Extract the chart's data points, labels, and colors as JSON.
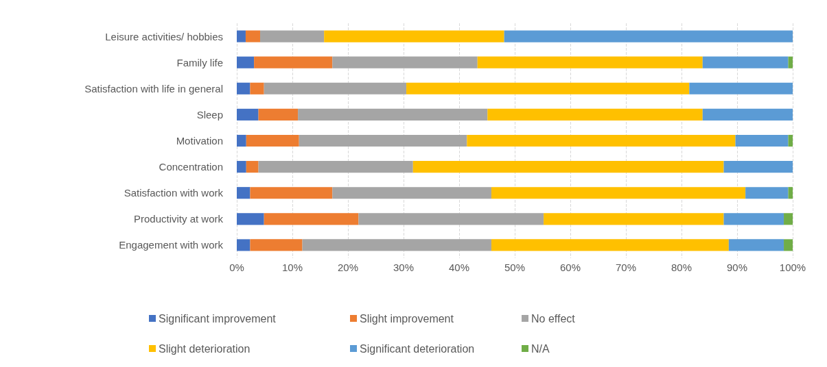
{
  "chart_data": {
    "type": "bar",
    "orientation": "horizontal",
    "stacked": true,
    "categories": [
      "Leisure activities/ hobbies",
      "Family life",
      "Satisfaction with life in general",
      "Sleep",
      "Motivation",
      "Concentration",
      "Satisfaction with work",
      "Productivity at work",
      "Engagement with work"
    ],
    "series": [
      {
        "name": "Significant improvement",
        "color": "#4472c4",
        "values": [
          1.6,
          3.1,
          2.4,
          3.9,
          1.7,
          1.7,
          2.4,
          4.9,
          2.4
        ]
      },
      {
        "name": "Slight improvement",
        "color": "#ed7d31",
        "values": [
          2.6,
          14.1,
          2.5,
          7.1,
          9.5,
          2.2,
          14.8,
          17.0,
          9.4
        ]
      },
      {
        "name": "No effect",
        "color": "#a5a5a5",
        "values": [
          11.5,
          26.1,
          25.6,
          34.1,
          30.2,
          27.8,
          28.6,
          33.3,
          34.0
        ]
      },
      {
        "name": "Slight deterioration",
        "color": "#ffc000",
        "values": [
          32.4,
          40.5,
          50.9,
          38.7,
          48.3,
          55.9,
          45.7,
          32.4,
          42.7
        ]
      },
      {
        "name": "Significant deterioration",
        "color": "#5b9bd5",
        "values": [
          51.9,
          15.4,
          18.6,
          16.2,
          9.5,
          12.4,
          7.7,
          10.8,
          9.9
        ]
      },
      {
        "name": "N/A",
        "color": "#70ad47",
        "values": [
          0,
          0.8,
          0,
          0,
          0.8,
          0,
          0.8,
          1.6,
          1.6
        ]
      }
    ],
    "xlim": [
      0,
      100
    ],
    "xticks": [
      {
        "value": 0,
        "label": "0%"
      },
      {
        "value": 10,
        "label": "10%"
      },
      {
        "value": 20,
        "label": "20%"
      },
      {
        "value": 30,
        "label": "30%"
      },
      {
        "value": 40,
        "label": "40%"
      },
      {
        "value": 50,
        "label": "50%"
      },
      {
        "value": 60,
        "label": "60%"
      },
      {
        "value": 70,
        "label": "70%"
      },
      {
        "value": 80,
        "label": "80%"
      },
      {
        "value": 90,
        "label": "90%"
      },
      {
        "value": 100,
        "label": "100%"
      }
    ],
    "grid": "x",
    "legend": "bottom"
  }
}
